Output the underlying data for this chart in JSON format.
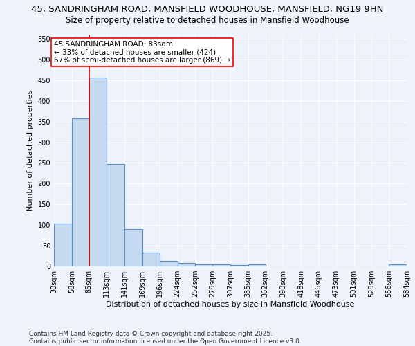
{
  "title": "45, SANDRINGHAM ROAD, MANSFIELD WOODHOUSE, MANSFIELD, NG19 9HN",
  "subtitle": "Size of property relative to detached houses in Mansfield Woodhouse",
  "xlabel": "Distribution of detached houses by size in Mansfield Woodhouse",
  "ylabel": "Number of detached properties",
  "footer_line1": "Contains HM Land Registry data © Crown copyright and database right 2025.",
  "footer_line2": "Contains public sector information licensed under the Open Government Licence v3.0.",
  "bar_edges": [
    30,
    58,
    85,
    113,
    141,
    169,
    196,
    224,
    252,
    279,
    307,
    335,
    362,
    390,
    418,
    446,
    473,
    501,
    529,
    556,
    584
  ],
  "bar_heights": [
    103,
    357,
    456,
    247,
    90,
    34,
    14,
    9,
    5,
    5,
    4,
    5,
    0,
    0,
    0,
    0,
    0,
    0,
    0,
    5
  ],
  "bar_color": "#c5d9f1",
  "bar_edge_color": "#5b8ec4",
  "bar_linewidth": 0.8,
  "vline_x": 85,
  "vline_color": "#cc0000",
  "annotation_text": "45 SANDRINGHAM ROAD: 83sqm\n← 33% of detached houses are smaller (424)\n67% of semi-detached houses are larger (869) →",
  "ylim": [
    0,
    560
  ],
  "yticks": [
    0,
    50,
    100,
    150,
    200,
    250,
    300,
    350,
    400,
    450,
    500,
    550
  ],
  "bg_color": "#eef3fb",
  "plot_bg_color": "#eef3fb",
  "grid_color": "white",
  "title_fontsize": 9.5,
  "subtitle_fontsize": 8.5,
  "label_fontsize": 8,
  "tick_fontsize": 7,
  "footer_fontsize": 6.5,
  "ann_fontsize": 7.5
}
